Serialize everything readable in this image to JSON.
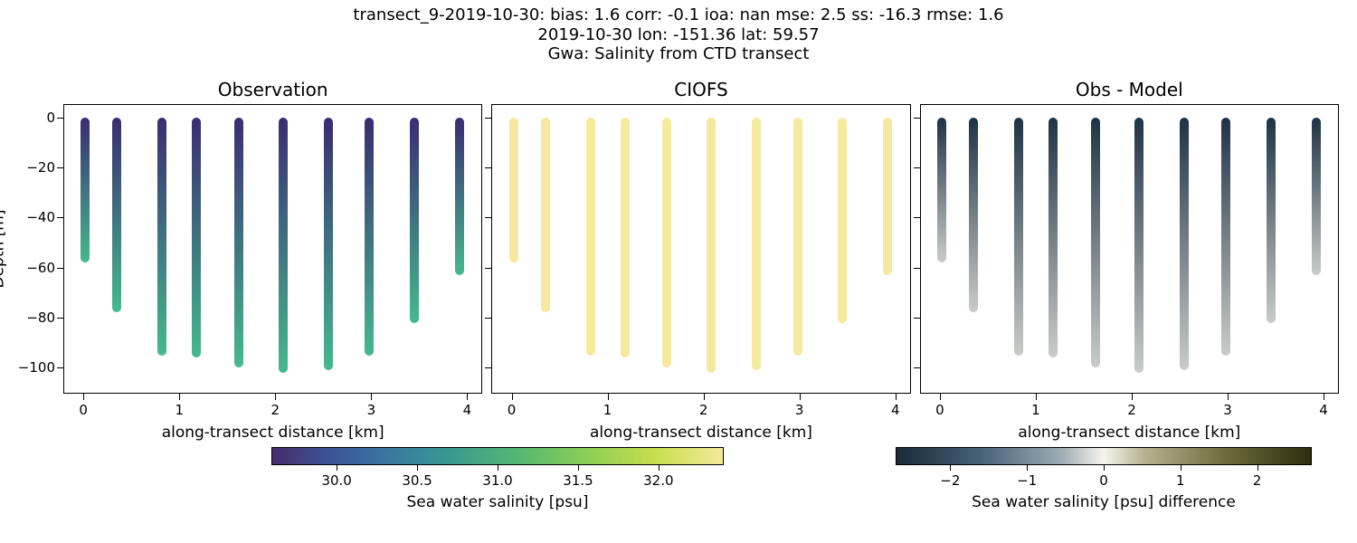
{
  "title": {
    "line1": "transect_9-2019-10-30: bias: 1.6  corr: -0.1  ioa: nan  mse: 2.5  ss: -16.3  rmse: 1.6",
    "line2": "2019-10-30 lon: -151.36 lat: 59.57",
    "line3": "Gwa: Salinity from CTD transect"
  },
  "ylabel": "Depth [m]",
  "xlabel": "along-transect distance [km]",
  "xlim": [
    -0.2,
    4.15
  ],
  "ylim": [
    -110,
    5
  ],
  "xticks": [
    0,
    1,
    2,
    3,
    4
  ],
  "yticks": [
    0,
    -20,
    -40,
    -60,
    -80,
    -100
  ],
  "ytick_labels": [
    "0",
    "−20",
    "−40",
    "−60",
    "−80",
    "−100"
  ],
  "panels": [
    {
      "id": "obs",
      "title": "Observation",
      "show_ylabel": true,
      "show_yticklabels": true,
      "color_by": "profile_grad"
    },
    {
      "id": "model",
      "title": "CIOFS",
      "show_ylabel": false,
      "show_yticklabels": false,
      "color_by": "uniform"
    },
    {
      "id": "diff",
      "title": "Obs - Model",
      "show_ylabel": false,
      "show_yticklabels": false,
      "color_by": "diff_grad"
    }
  ],
  "profiles": [
    {
      "x": 0.02,
      "top_depth": 0,
      "bottom_depth": -58
    },
    {
      "x": 0.35,
      "top_depth": 0,
      "bottom_depth": -78
    },
    {
      "x": 0.82,
      "top_depth": 0,
      "bottom_depth": -95
    },
    {
      "x": 1.18,
      "top_depth": 0,
      "bottom_depth": -96
    },
    {
      "x": 1.62,
      "top_depth": 0,
      "bottom_depth": -100
    },
    {
      "x": 2.08,
      "top_depth": 0,
      "bottom_depth": -102
    },
    {
      "x": 2.55,
      "top_depth": 0,
      "bottom_depth": -101
    },
    {
      "x": 2.98,
      "top_depth": 0,
      "bottom_depth": -95
    },
    {
      "x": 3.45,
      "top_depth": 0,
      "bottom_depth": -82
    },
    {
      "x": 3.92,
      "top_depth": 0,
      "bottom_depth": -63
    }
  ],
  "color_modes": {
    "profile_grad": {
      "type": "gradient",
      "top": "#3a2c72",
      "bottom": "#45b98e"
    },
    "uniform": {
      "type": "solid",
      "color": "#f4e99d"
    },
    "diff_grad": {
      "type": "gradient",
      "top": "#1f3346",
      "bottom": "#c9ccc8"
    }
  },
  "salinity_cbar": {
    "label": "Sea water salinity [psu]",
    "vmin": 29.6,
    "vmax": 32.4,
    "ticks": [
      30.0,
      30.5,
      31.0,
      31.5,
      32.0
    ],
    "tick_labels": [
      "30.0",
      "30.5",
      "31.0",
      "31.5",
      "32.0"
    ],
    "gradient_stops": [
      {
        "p": 0,
        "c": "#462d6b"
      },
      {
        "p": 12,
        "c": "#3d5196"
      },
      {
        "p": 25,
        "c": "#3976a1"
      },
      {
        "p": 40,
        "c": "#3a9a8f"
      },
      {
        "p": 55,
        "c": "#56b871"
      },
      {
        "p": 70,
        "c": "#8ccf56"
      },
      {
        "p": 85,
        "c": "#c7de4d"
      },
      {
        "p": 100,
        "c": "#f4e99d"
      }
    ]
  },
  "diff_cbar": {
    "label": "Sea water salinity [psu] difference",
    "vmin": -2.7,
    "vmax": 2.7,
    "ticks": [
      -2,
      -1,
      0,
      1,
      2
    ],
    "tick_labels": [
      "−2",
      "−1",
      "0",
      "1",
      "2"
    ],
    "gradient_stops": [
      {
        "p": 0,
        "c": "#1a2a38"
      },
      {
        "p": 20,
        "c": "#466177"
      },
      {
        "p": 40,
        "c": "#9fadb6"
      },
      {
        "p": 50,
        "c": "#f6f4ec"
      },
      {
        "p": 60,
        "c": "#b5b18e"
      },
      {
        "p": 80,
        "c": "#6a6a3a"
      },
      {
        "p": 100,
        "c": "#2e2e10"
      }
    ]
  },
  "typography": {
    "title_fontsize": 18,
    "axis_label_fontsize": 17,
    "tick_fontsize": 15
  },
  "background_color": "#ffffff"
}
